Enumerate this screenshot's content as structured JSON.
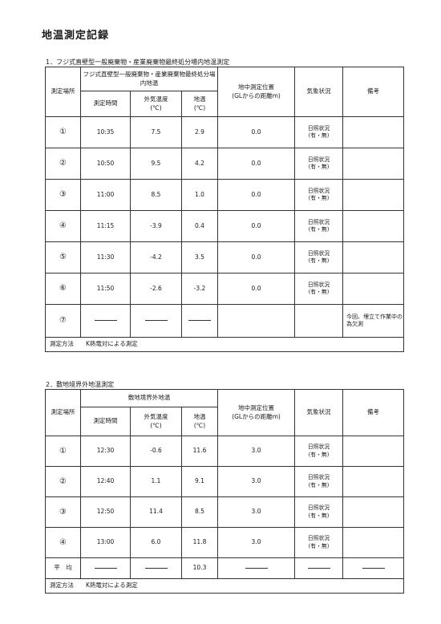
{
  "title": "地温測定記録",
  "section1": {
    "heading": "1．フジ式直壁型一般廃棄物・産業廃棄物最終処分場内地温測定",
    "group_header": "フジ式直壁型一般廃棄物・産業廃棄物最終処分場内地温",
    "headers": {
      "location": "測定場所",
      "time": "測定時間",
      "air_temp": "外気温度",
      "air_unit": "(℃)",
      "ground_temp": "地温",
      "ground_unit": "(℃)",
      "depth": "地中測定位置",
      "depth_sub": "(GLからの距離m)",
      "weather": "気象状況",
      "remarks": "備考"
    },
    "rows": [
      {
        "loc": "①",
        "time": "10:35",
        "air": "7.5",
        "ground": "2.9",
        "depth": "0.0",
        "w1": "日照状況",
        "w2": "(有・無)",
        "remark": ""
      },
      {
        "loc": "②",
        "time": "10:50",
        "air": "9.5",
        "ground": "4.2",
        "depth": "0.0",
        "w1": "日照状況",
        "w2": "(有・無)",
        "remark": ""
      },
      {
        "loc": "③",
        "time": "11:00",
        "air": "8.5",
        "ground": "1.0",
        "depth": "0.0",
        "w1": "日照状況",
        "w2": "(有・無)",
        "remark": ""
      },
      {
        "loc": "④",
        "time": "11:15",
        "air": "-3.9",
        "ground": "0.4",
        "depth": "0.0",
        "w1": "日照状況",
        "w2": "(有・無)",
        "remark": ""
      },
      {
        "loc": "⑤",
        "time": "11:30",
        "air": "-4.2",
        "ground": "3.5",
        "depth": "0.0",
        "w1": "日照状況",
        "w2": "(有・無)",
        "remark": ""
      },
      {
        "loc": "⑥",
        "time": "11:50",
        "air": "-2.6",
        "ground": "-3.2",
        "depth": "0.0",
        "w1": "日照状況",
        "w2": "(有・無)",
        "remark": ""
      }
    ],
    "row7": {
      "loc": "⑦",
      "remark": "今回、埋立て作業中の為欠測"
    },
    "method": "測定方法　　K熱電対による測定"
  },
  "section2": {
    "heading": "2．敷地境界外地温測定",
    "group_header": "敷地境界外地温",
    "headers": {
      "location": "測定場所",
      "time": "測定時間",
      "air_temp": "外気温度",
      "air_unit": "(℃)",
      "ground_temp": "地温",
      "ground_unit": "(℃)",
      "depth": "地中測定位置",
      "depth_sub": "(GLからの距離m)",
      "weather": "気象状況",
      "remarks": "備考"
    },
    "rows": [
      {
        "loc": "①",
        "time": "12:30",
        "air": "-0.6",
        "ground": "11.6",
        "depth": "3.0",
        "w1": "日照状況",
        "w2": "(有・無)"
      },
      {
        "loc": "②",
        "time": "12:40",
        "air": "1.1",
        "ground": "9.1",
        "depth": "3.0",
        "w1": "日照状況",
        "w2": "(有・無)"
      },
      {
        "loc": "③",
        "time": "12:50",
        "air": "11.4",
        "ground": "8.5",
        "depth": "3.0",
        "w1": "日照状況",
        "w2": "(有・無)"
      },
      {
        "loc": "④",
        "time": "13:00",
        "air": "6.0",
        "ground": "11.8",
        "depth": "3.0",
        "w1": "日照状況",
        "w2": "(有・無)"
      }
    ],
    "average": {
      "label": "平　均",
      "ground": "10.3"
    },
    "method": "測定方法　　K熱電対による測定"
  }
}
